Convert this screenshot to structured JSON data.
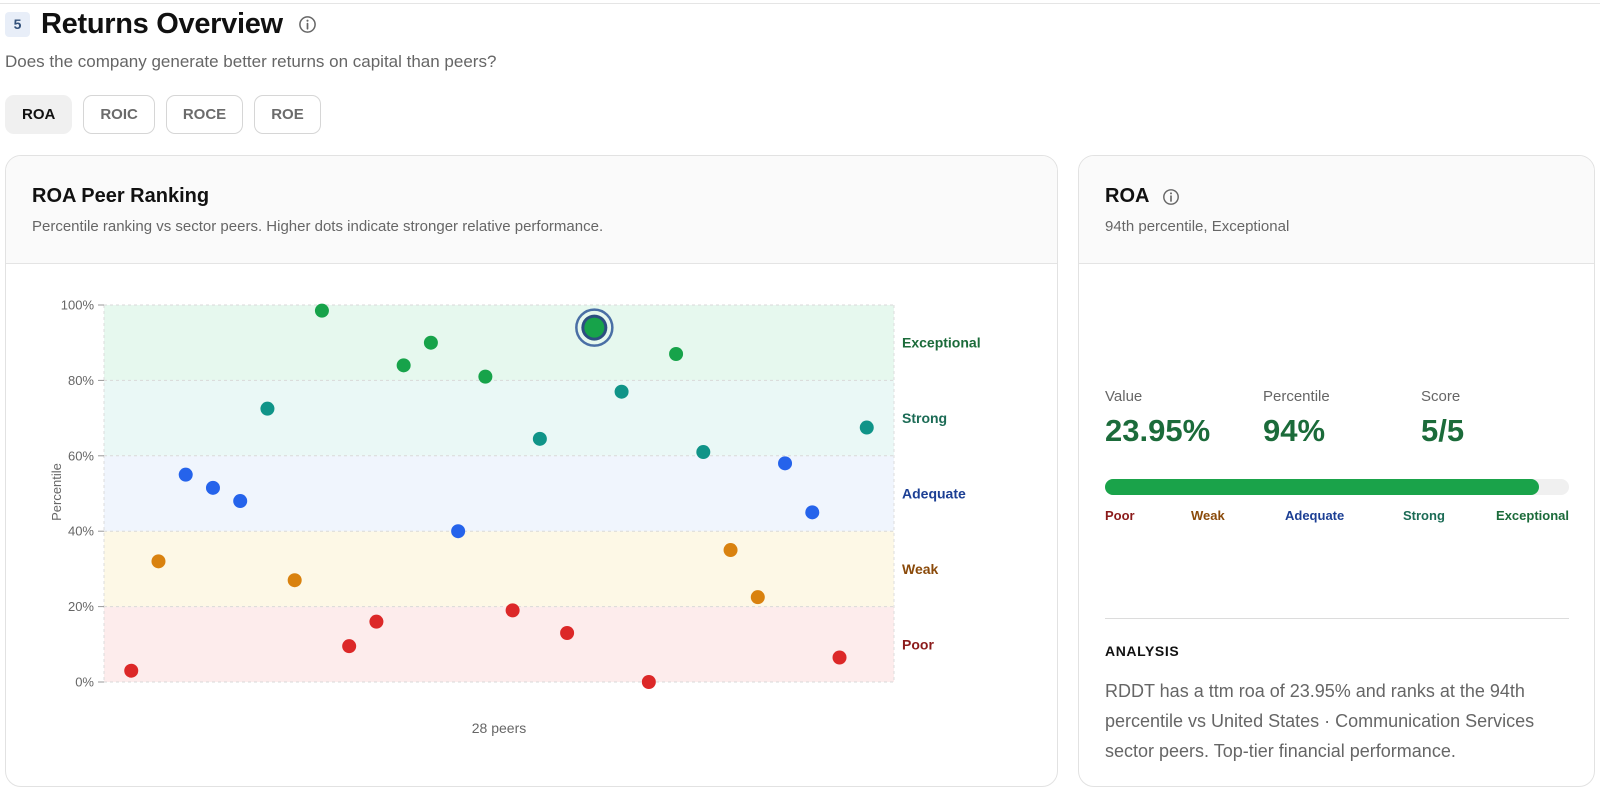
{
  "section": {
    "number": "5",
    "title": "Returns Overview",
    "subtitle": "Does the company generate better returns on capital than peers?",
    "info_icon": "info-circle-icon"
  },
  "tabs": [
    {
      "label": "ROA",
      "active": true
    },
    {
      "label": "ROIC",
      "active": false
    },
    {
      "label": "ROCE",
      "active": false
    },
    {
      "label": "ROE",
      "active": false
    }
  ],
  "chart_card": {
    "title": "ROA Peer Ranking",
    "subtitle": "Percentile ranking vs sector peers. Higher dots indicate stronger relative performance."
  },
  "chart_data": {
    "type": "scatter",
    "ylabel": "Percentile",
    "xlabel": "28 peers",
    "ylim": [
      0,
      100
    ],
    "yticks": [
      "0%",
      "20%",
      "40%",
      "60%",
      "80%",
      "100%"
    ],
    "grid": true,
    "bands": [
      {
        "name": "Poor",
        "from": 0,
        "to": 20,
        "color": "#8b1a1a",
        "fill": "#fdecec"
      },
      {
        "name": "Weak",
        "from": 20,
        "to": 40,
        "color": "#8a4a0a",
        "fill": "#fdf8e6"
      },
      {
        "name": "Adequate",
        "from": 40,
        "to": 60,
        "color": "#1c3f94",
        "fill": "#f0f5fd"
      },
      {
        "name": "Strong",
        "from": 60,
        "to": 80,
        "color": "#1b6b55",
        "fill": "#eaf8f6"
      },
      {
        "name": "Exceptional",
        "from": 80,
        "to": 100,
        "color": "#1b6b3a",
        "fill": "#e6f8ee"
      }
    ],
    "colors": {
      "Poor": "#dc2828",
      "Weak": "#d9820f",
      "Adequate": "#2563eb",
      "Strong": "#109488",
      "Exceptional": "#17a34a"
    },
    "points": [
      3,
      32,
      55,
      51.5,
      48,
      72.5,
      27,
      98.5,
      9.5,
      16,
      84,
      90,
      40,
      81,
      19,
      64.5,
      13,
      94,
      77,
      0,
      87,
      61,
      35,
      22.5,
      58,
      45,
      6.5,
      67.5
    ],
    "highlight_index": 17
  },
  "side_card": {
    "title": "ROA",
    "subtitle": "94th percentile, Exceptional",
    "value_label": "Value",
    "value": "23.95%",
    "percentile_label": "Percentile",
    "percentile": "94%",
    "score_label": "Score",
    "score": "5/5",
    "bar_fill_fraction": 0.935,
    "scale_labels": [
      "Poor",
      "Weak",
      "Adequate",
      "Strong",
      "Exceptional"
    ],
    "analysis_title": "ANALYSIS",
    "analysis_text": "RDDT has a ttm roa of 23.95% and ranks at the 94th percentile vs United States · Communication Services sector peers. Top-tier financial performance."
  }
}
